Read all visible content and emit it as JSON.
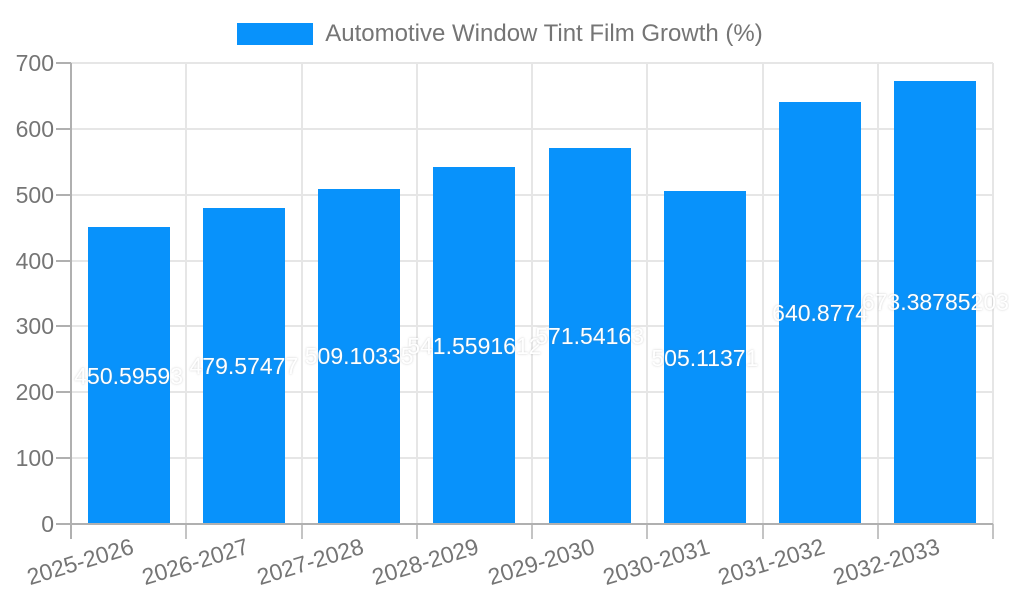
{
  "legend": {
    "label": "Automotive Window Tint Film Growth (%)"
  },
  "colors": {
    "bar": "#0892fb",
    "axis_label": "#757575",
    "grid": "#e6e6e6",
    "axis_line": "#b0b0b0",
    "minor_tick": "#c4c4c4",
    "bar_label_text": "#ffffff"
  },
  "chart_data": {
    "type": "bar",
    "title": "Automotive Window Tint Film Growth (%)",
    "categories": [
      "2025-2026",
      "2026-2027",
      "2027-2028",
      "2028-2029",
      "2029-2030",
      "2030-2031",
      "2031-2032",
      "2032-2033"
    ],
    "values": [
      450.59593,
      479.57477,
      509.10335,
      541.5591612,
      571.54163,
      505.11371,
      640.8774,
      673.38785203
    ],
    "value_labels": [
      "450.59593",
      "479.57477",
      "509.10335",
      "541.5591612",
      "571.54163",
      "505.11371",
      "640.8774",
      "673.38785203"
    ],
    "ylim": [
      0,
      700
    ],
    "ytick_step": 100,
    "ytick_labels": [
      "0",
      "100",
      "200",
      "300",
      "400",
      "500",
      "600",
      "700"
    ],
    "xlabel": "",
    "ylabel": "",
    "grid": "horizontal gridlines every 100 plus vertical category-boundary lines",
    "legend_position": "top-center",
    "bar_color": "#0892fb",
    "value_label_position": "center of bar, white, clipped ghost outside bar"
  }
}
